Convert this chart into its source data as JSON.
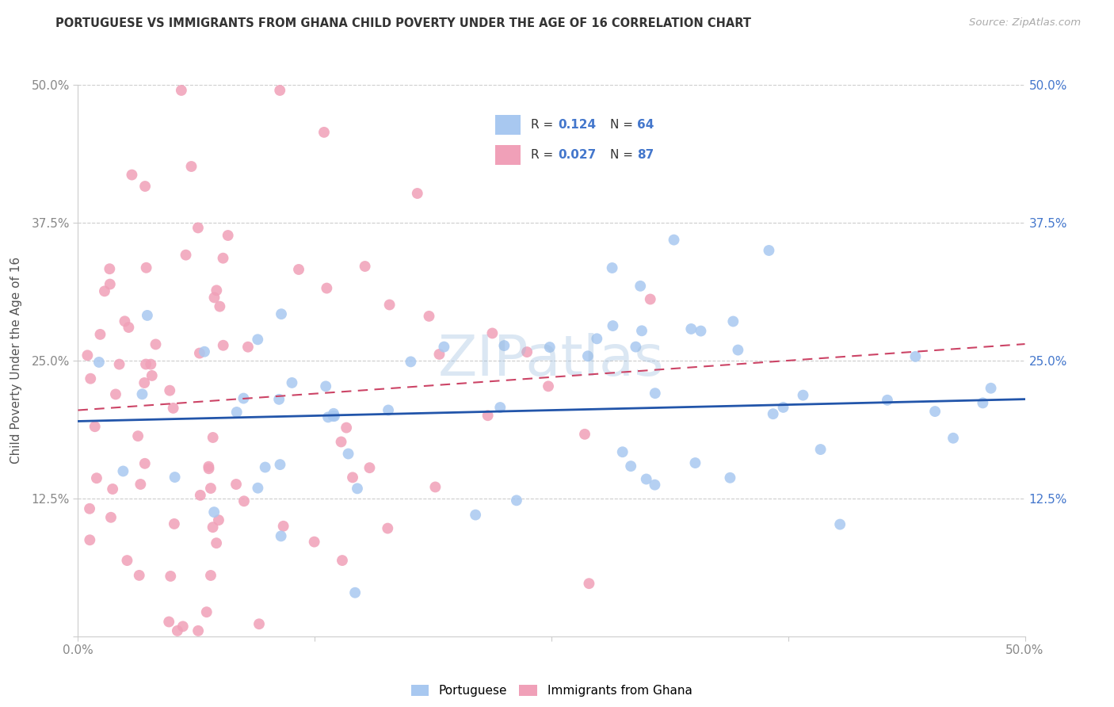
{
  "title": "PORTUGUESE VS IMMIGRANTS FROM GHANA CHILD POVERTY UNDER THE AGE OF 16 CORRELATION CHART",
  "source": "Source: ZipAtlas.com",
  "ylabel": "Child Poverty Under the Age of 16",
  "xlim": [
    0.0,
    0.5
  ],
  "ylim": [
    0.0,
    0.5
  ],
  "blue_color": "#a8c8f0",
  "pink_color": "#f0a0b8",
  "blue_line_color": "#2255aa",
  "pink_line_color": "#cc4466",
  "blue_R": 0.124,
  "blue_N": 64,
  "pink_R": 0.027,
  "pink_N": 87,
  "blue_line_start_y": 0.195,
  "blue_line_end_y": 0.215,
  "pink_line_start_y": 0.205,
  "pink_line_end_y": 0.265,
  "watermark_text": "ZIPatlas",
  "watermark_color": "#99bbdd",
  "right_axis_color": "#4477cc",
  "tick_label_color": "#888888"
}
